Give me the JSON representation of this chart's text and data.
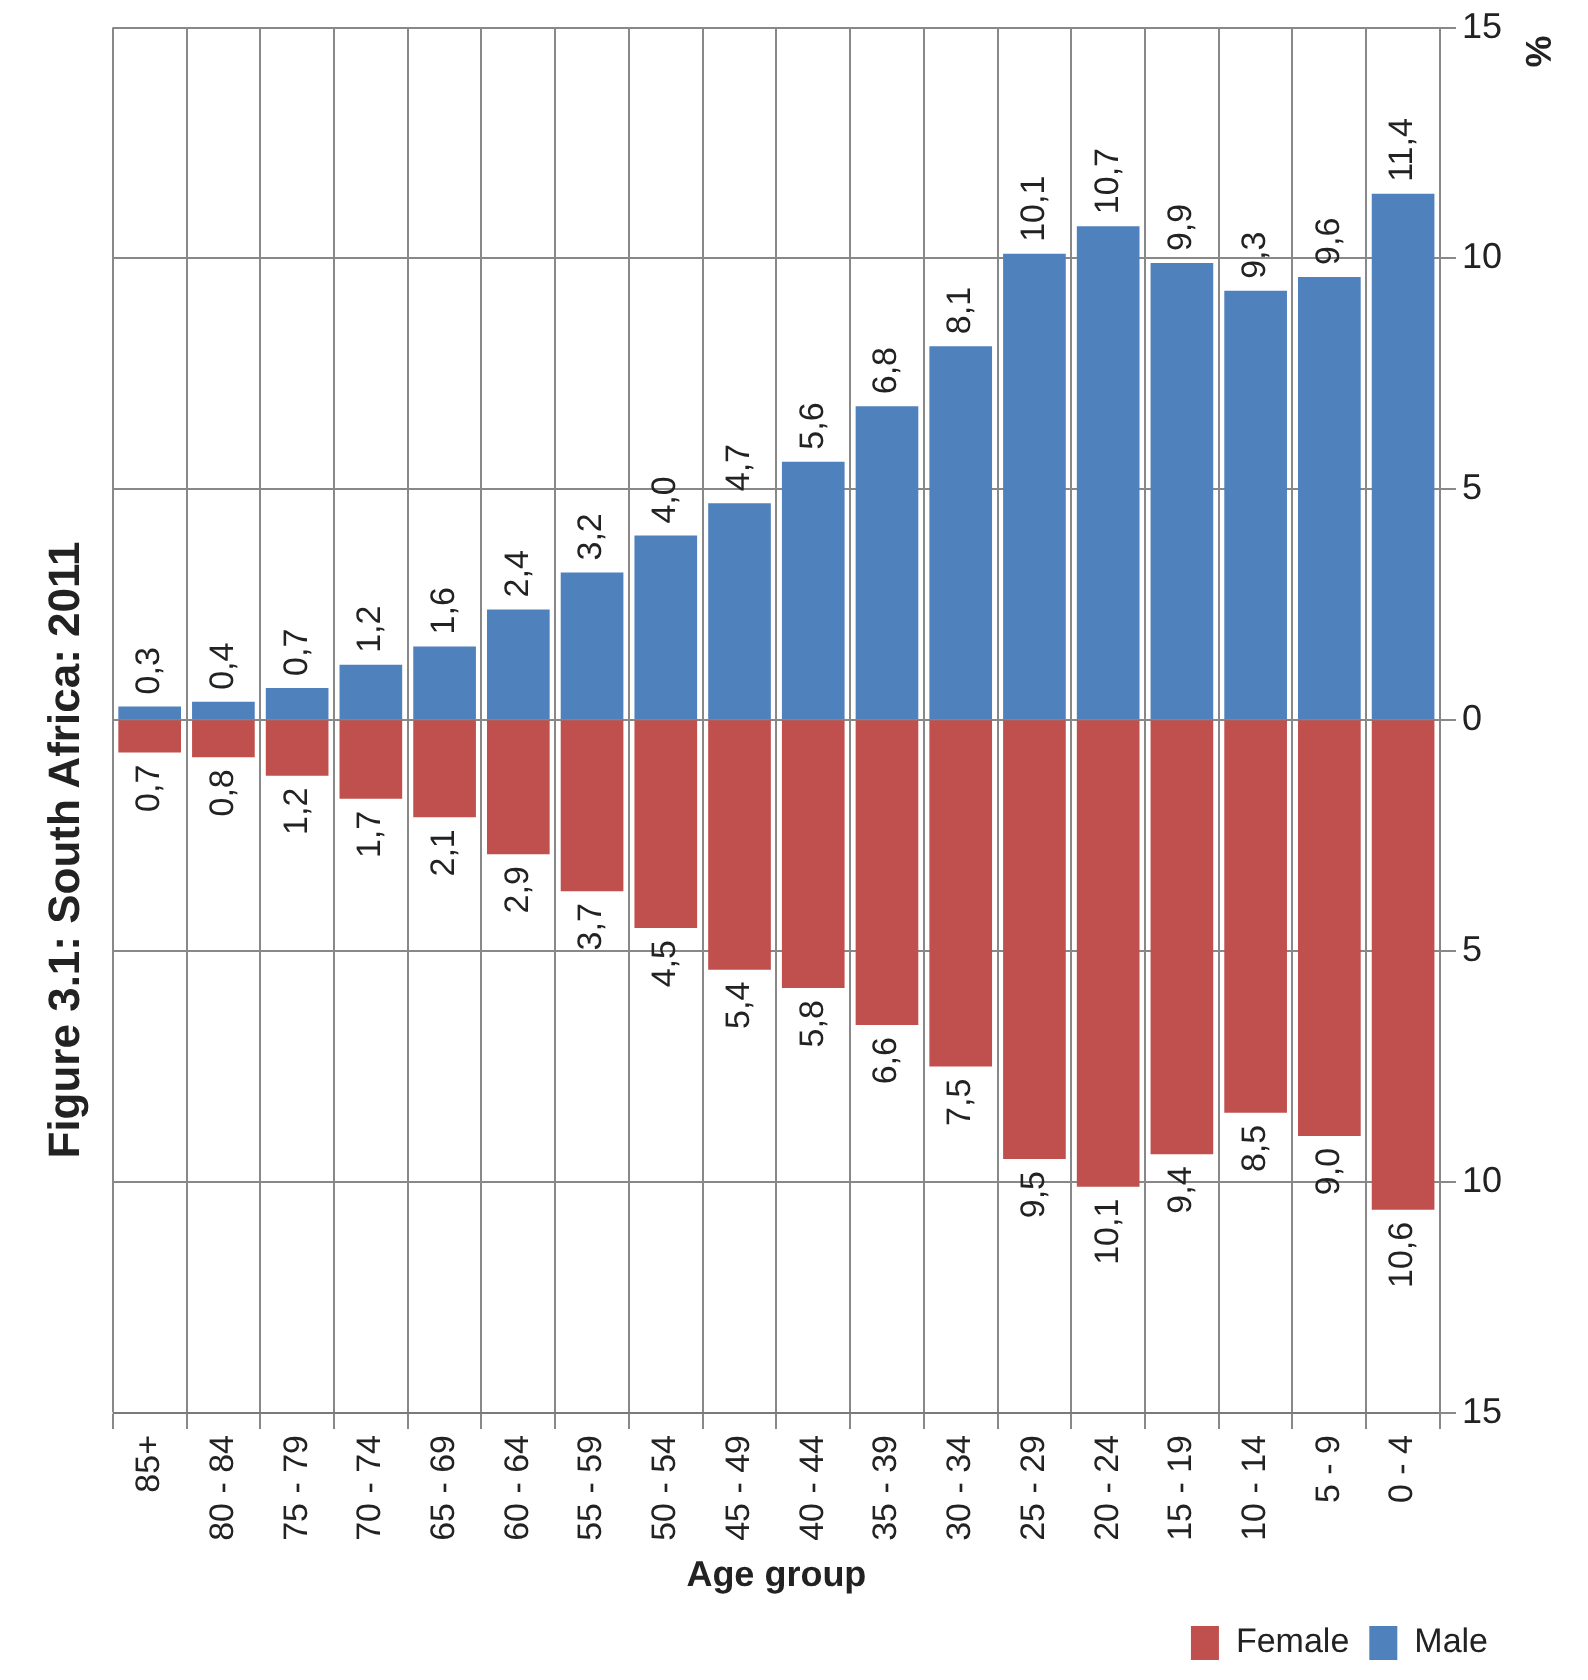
{
  "chart_data": {
    "type": "bar",
    "title": "Figure 3.1: South Africa: 2011",
    "xlabel": "Age group",
    "y2label": "%",
    "categories": [
      "85+",
      "80 - 84",
      "75 - 79",
      "70 - 74",
      "65 - 69",
      "60 - 64",
      "55 - 59",
      "50 - 54",
      "45 - 49",
      "40 - 44",
      "35 - 39",
      "30 - 34",
      "25 - 29",
      "20 - 24",
      "15 - 19",
      "10 - 14",
      "5 - 9",
      "0 - 4"
    ],
    "stacked": true,
    "series": [
      {
        "name": "Female",
        "color": "#c0504d",
        "axis": "y2",
        "values": [
          0.7,
          0.8,
          1.2,
          1.7,
          2.1,
          2.9,
          3.7,
          4.5,
          5.4,
          5.8,
          6.6,
          7.5,
          9.5,
          10.1,
          9.4,
          8.5,
          9.0,
          10.6
        ],
        "value_labels": [
          "0,7",
          "0,8",
          "1,2",
          "1,7",
          "2,1",
          "2,9",
          "3,7",
          "4,5",
          "5,4",
          "5,8",
          "6,6",
          "7,5",
          "9,5",
          "10,1",
          "9,4",
          "8,5",
          "9,0",
          "10,6"
        ]
      },
      {
        "name": "Male",
        "color": "#4f81bd",
        "values": [
          0.3,
          0.4,
          0.7,
          1.2,
          1.6,
          2.4,
          3.2,
          4.0,
          4.7,
          5.6,
          6.8,
          8.1,
          10.1,
          10.7,
          9.9,
          9.3,
          9.6,
          11.4
        ],
        "value_labels": [
          "0,3",
          "0,4",
          "0,7",
          "1,2",
          "1,6",
          "2,4",
          "3,2",
          "4,0",
          "4,7",
          "5,6",
          "6,8",
          "8,1",
          "10,1",
          "10,7",
          "9,9",
          "9,3",
          "9,6",
          "11,4"
        ]
      }
    ],
    "ylim": [
      -15,
      15
    ],
    "yticks": [
      0,
      5,
      10,
      15
    ],
    "y2lim": [
      15,
      -15
    ],
    "y2ticks": [
      5,
      10,
      15
    ],
    "grid": true,
    "legend": "bottom right"
  }
}
